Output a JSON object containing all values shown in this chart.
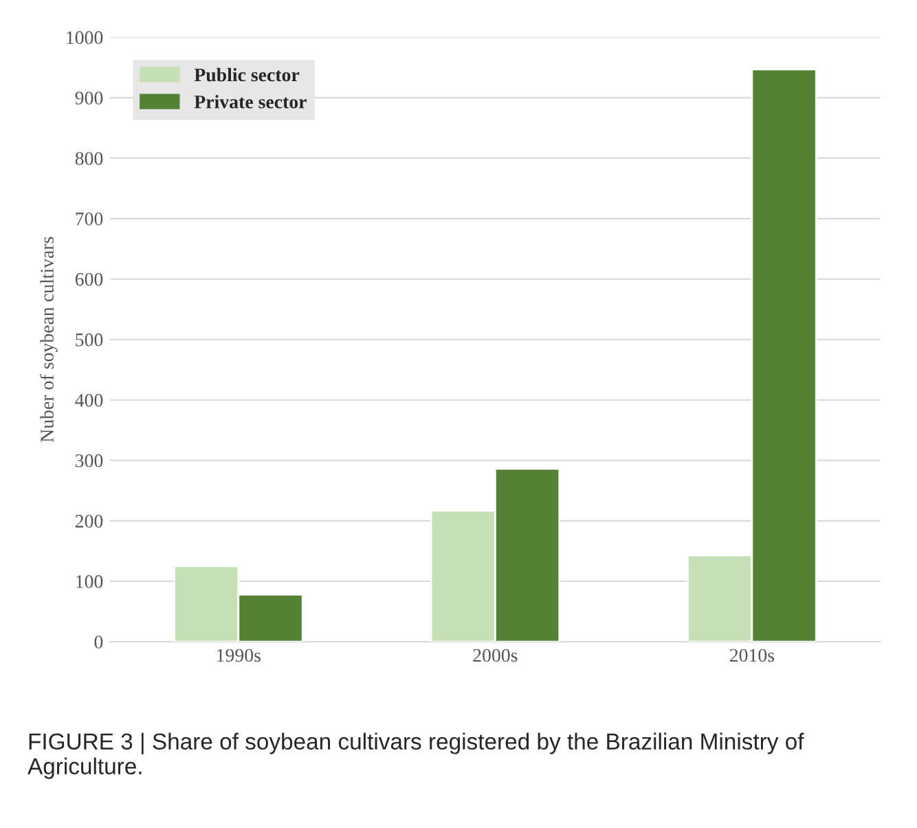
{
  "chart_data": {
    "type": "bar",
    "ylabel": "Nuber of soybean cultivars",
    "categories": [
      "1990s",
      "2000s",
      "2010s"
    ],
    "series": [
      {
        "name": "Public sector",
        "color": "#c5e0b4",
        "values": [
          125,
          217,
          143
        ]
      },
      {
        "name": "Private sector",
        "color": "#548235",
        "values": [
          78,
          286,
          947
        ]
      }
    ],
    "ylim": [
      0,
      1000
    ],
    "yticks": [
      0,
      100,
      200,
      300,
      400,
      500,
      600,
      700,
      800,
      900,
      1000
    ],
    "grid": "y",
    "legend": "top left",
    "annotations": [
      "FIGURE 3 | Share of soybean cultivars registered by the Brazilian Ministry of Agriculture."
    ]
  }
}
